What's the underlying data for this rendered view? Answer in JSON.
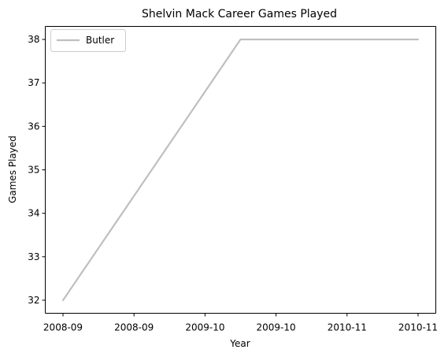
{
  "chart_data": {
    "type": "line",
    "title": "Shelvin Mack Career Games Played",
    "xlabel": "Year",
    "ylabel": "Games Played",
    "x": [
      "2008-09",
      "2009-10",
      "2010-11"
    ],
    "x_tick_labels": [
      "2008-09",
      "2008-09",
      "2009-10",
      "2009-10",
      "2010-11",
      "2010-11"
    ],
    "y_tick_labels": [
      "32",
      "33",
      "34",
      "35",
      "36",
      "37",
      "38"
    ],
    "ylim": [
      31.7,
      38.3
    ],
    "series": [
      {
        "name": "Butler",
        "values": [
          32,
          38,
          38
        ],
        "color": "#bfbfbf"
      }
    ],
    "legend": {
      "position": "top-left",
      "entries": [
        "Butler"
      ]
    },
    "grid": false
  }
}
